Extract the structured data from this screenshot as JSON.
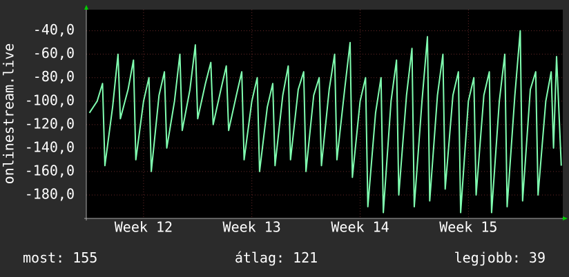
{
  "chart_data": {
    "type": "line",
    "y_label": "onlinestream.live",
    "x": [
      0,
      0.5,
      0.85,
      1,
      1.5,
      1.85,
      2,
      2.5,
      2.85,
      3,
      3.5,
      3.85,
      4,
      4.5,
      4.85,
      5,
      5.5,
      5.85,
      6,
      6.5,
      6.85,
      7,
      7.5,
      7.85,
      8,
      8.5,
      8.85,
      9,
      9.5,
      9.85,
      10,
      10.5,
      10.85,
      11,
      11.5,
      11.85,
      12,
      12.5,
      12.85,
      13,
      13.5,
      13.85,
      14,
      14.5,
      14.85,
      15,
      15.5,
      15.85,
      16,
      16.5,
      16.85,
      17,
      17.5,
      17.85,
      18,
      18.5,
      18.85,
      19,
      19.5,
      19.85,
      20,
      20.5,
      20.85,
      21,
      21.5,
      21.85,
      22,
      22.5,
      22.85,
      23,
      23.5,
      23.85,
      24,
      24.5,
      24.85,
      25,
      25.5,
      25.85,
      26,
      26.5,
      26.85,
      27,
      27.5,
      27.85,
      28,
      28.5,
      28.85,
      29,
      29.5,
      29.85,
      30,
      30.2,
      30.5
    ],
    "series": [
      {
        "name": "onlinestream.live",
        "color": "#80ffb0",
        "values": [
          -110,
          -100,
          -85,
          -155,
          -105,
          -60,
          -115,
          -90,
          -65,
          -150,
          -100,
          -80,
          -160,
          -95,
          -75,
          -140,
          -100,
          -60,
          -125,
          -90,
          -52,
          -115,
          -85,
          -67,
          -120,
          -90,
          -70,
          -125,
          -95,
          -75,
          -150,
          -100,
          -80,
          -160,
          -105,
          -85,
          -155,
          -95,
          -70,
          -150,
          -90,
          -75,
          -160,
          -95,
          -80,
          -155,
          -90,
          -60,
          -150,
          -90,
          -50,
          -165,
          -100,
          -80,
          -190,
          -110,
          -80,
          -195,
          -100,
          -65,
          -180,
          -95,
          -55,
          -190,
          -100,
          -45,
          -185,
          -95,
          -60,
          -175,
          -95,
          -75,
          -195,
          -100,
          -80,
          -180,
          -95,
          -75,
          -195,
          -100,
          -60,
          -190,
          -95,
          -40,
          -185,
          -90,
          -75,
          -180,
          -100,
          -75,
          -140,
          -62,
          -155
        ]
      }
    ],
    "xlim": [
      -0.2,
      30.6
    ],
    "xticks": [
      {
        "value": 3.5,
        "label": "Week 12"
      },
      {
        "value": 10.5,
        "label": "Week 13"
      },
      {
        "value": 17.5,
        "label": "Week 14"
      },
      {
        "value": 24.5,
        "label": "Week 15"
      }
    ],
    "ylim": [
      -200,
      -22
    ],
    "yticks": [
      {
        "value": -40,
        "label": "-40,0"
      },
      {
        "value": -60,
        "label": "-60,0"
      },
      {
        "value": -80,
        "label": "-80,0"
      },
      {
        "value": -100,
        "label": "-100,0"
      },
      {
        "value": -120,
        "label": "-120,0"
      },
      {
        "value": -140,
        "label": "-140,0"
      },
      {
        "value": -160,
        "label": "-160,0"
      },
      {
        "value": -180,
        "label": "-180,0"
      }
    ],
    "grid": true
  },
  "footer": [
    {
      "label": "most:",
      "value": 155
    },
    {
      "label": "átlag:",
      "value": 121
    },
    {
      "label": "legjobb:",
      "value": 39
    }
  ]
}
